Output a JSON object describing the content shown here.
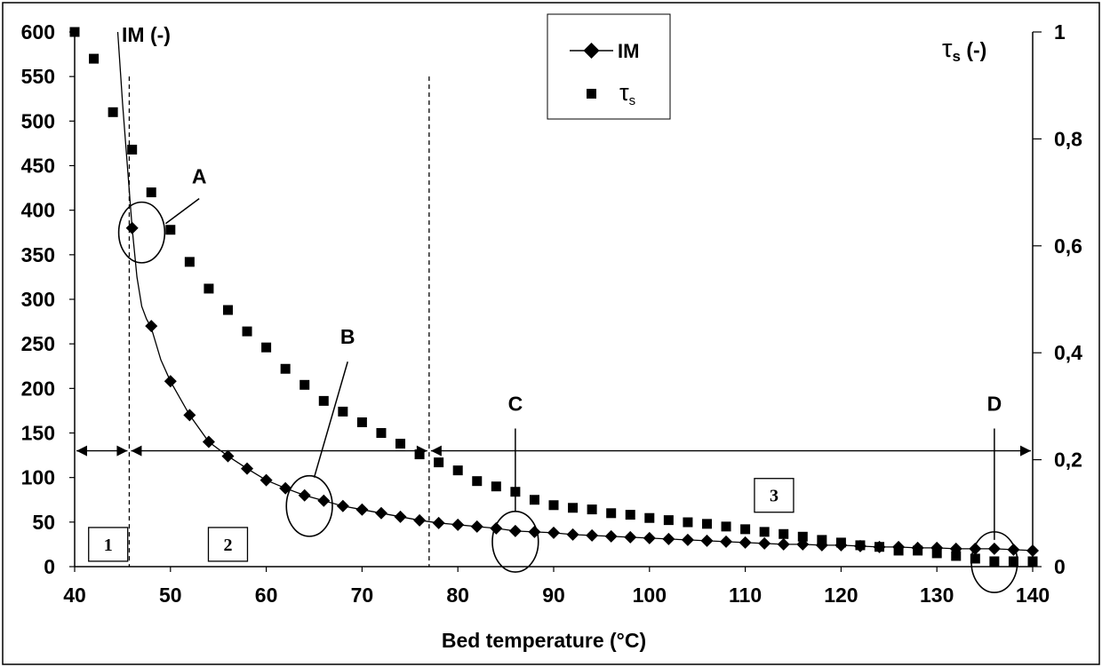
{
  "chart_data": {
    "type": "line",
    "xlabel": "Bed temperature (°C)",
    "ylabel_left": "IM (-)",
    "ylabel_right_main": "τ",
    "ylabel_right_sub": "s",
    "ylabel_right_suffix": " (-)",
    "xlim": [
      40,
      140
    ],
    "ylim_left": [
      0,
      600
    ],
    "ylim_right": [
      0,
      1
    ],
    "x_ticks": [
      "40",
      "50",
      "60",
      "70",
      "80",
      "90",
      "100",
      "110",
      "120",
      "130",
      "140"
    ],
    "y_left_ticks": [
      "0",
      "50",
      "100",
      "150",
      "200",
      "250",
      "300",
      "350",
      "400",
      "450",
      "500",
      "550",
      "600"
    ],
    "y_right_ticks": [
      "0",
      "0,2",
      "0,4",
      "0,6",
      "0,8",
      "1"
    ],
    "grid": false,
    "legend_position": "top-right",
    "series": [
      {
        "name": "IM",
        "axis": "left",
        "marker": "diamond",
        "x": [
          46,
          48,
          50,
          52,
          54,
          56,
          58,
          60,
          62,
          64,
          66,
          68,
          70,
          72,
          74,
          76,
          78,
          80,
          82,
          84,
          86,
          88,
          90,
          92,
          94,
          96,
          98,
          100,
          102,
          104,
          106,
          108,
          110,
          112,
          114,
          116,
          118,
          120,
          122,
          124,
          126,
          128,
          130,
          132,
          134,
          136,
          138,
          140
        ],
        "values": [
          380,
          270,
          208,
          170,
          140,
          124,
          110,
          97,
          88,
          80,
          74,
          68,
          64,
          60,
          56,
          52,
          49,
          47,
          45,
          43,
          40,
          39,
          38,
          36,
          35,
          34,
          33,
          32,
          31,
          30,
          29,
          28,
          27,
          26,
          25,
          25,
          24,
          24,
          23,
          22,
          22,
          21,
          21,
          20,
          20,
          20,
          19,
          18
        ]
      },
      {
        "name": "τs",
        "axis": "right",
        "marker": "square",
        "x": [
          40,
          42,
          44,
          46,
          48,
          50,
          52,
          54,
          56,
          58,
          60,
          62,
          64,
          66,
          68,
          70,
          72,
          74,
          76,
          78,
          80,
          82,
          84,
          86,
          88,
          90,
          92,
          94,
          96,
          98,
          100,
          102,
          104,
          106,
          108,
          110,
          112,
          114,
          116,
          118,
          120,
          122,
          124,
          126,
          128,
          130,
          132,
          134,
          136,
          138,
          140
        ],
        "values": [
          1.0,
          0.95,
          0.85,
          0.78,
          0.7,
          0.63,
          0.57,
          0.52,
          0.48,
          0.44,
          0.41,
          0.37,
          0.34,
          0.31,
          0.29,
          0.27,
          0.25,
          0.23,
          0.21,
          0.195,
          0.18,
          0.16,
          0.15,
          0.14,
          0.125,
          0.115,
          0.11,
          0.107,
          0.1,
          0.097,
          0.091,
          0.087,
          0.083,
          0.08,
          0.075,
          0.07,
          0.065,
          0.061,
          0.056,
          0.05,
          0.045,
          0.04,
          0.037,
          0.03,
          0.03,
          0.025,
          0.02,
          0.015,
          0.01,
          0.01,
          0.01
        ]
      }
    ],
    "im_curve": {
      "x": [
        44.5,
        45,
        45.5,
        46,
        46.5,
        47,
        47.5,
        48,
        49,
        50,
        52,
        54,
        56,
        58,
        60,
        62,
        64,
        66,
        68,
        70,
        72,
        74,
        76,
        78,
        80,
        82,
        84,
        86,
        88,
        90,
        92,
        94,
        96,
        98,
        100,
        102,
        104,
        106,
        108,
        110,
        112,
        114,
        116,
        118,
        120,
        122,
        124,
        126,
        128,
        130,
        132,
        134,
        136,
        138,
        140
      ],
      "values": [
        600,
        520,
        450,
        380,
        325,
        292,
        278,
        268,
        232,
        208,
        170,
        140,
        124,
        110,
        97,
        88,
        80,
        74,
        68,
        64,
        60,
        56,
        52,
        49,
        47,
        45,
        43,
        40,
        39,
        38,
        36,
        35,
        34,
        33,
        32,
        31,
        30,
        29,
        28,
        27,
        26,
        25,
        25,
        24,
        24,
        23,
        22,
        22,
        21,
        21,
        20,
        20,
        20,
        19,
        18
      ]
    },
    "dividers_x": [
      45.7,
      77
    ],
    "arrow_level": 130,
    "zones": [
      {
        "label": "1",
        "x": 43.5,
        "y": 25
      },
      {
        "label": "2",
        "x": 56,
        "y": 25
      },
      {
        "label": "3",
        "x": 113,
        "y": 80
      }
    ],
    "annotations": [
      {
        "label": "A",
        "cx": 47,
        "cy": 375,
        "rx": 2.4,
        "ry": 34,
        "lx1": 49.5,
        "ly1": 385,
        "lx2": 53,
        "ly2": 413,
        "tx": 53,
        "ty": 430
      },
      {
        "label": "B",
        "cx": 64.5,
        "cy": 68,
        "rx": 2.4,
        "ry": 34,
        "lx1": 65,
        "ly1": 100,
        "lx2": 68.5,
        "ly2": 230,
        "tx": 68.5,
        "ty": 250
      },
      {
        "label": "C",
        "cx": 86,
        "cy": 28,
        "rx": 2.4,
        "ry": 34,
        "lx1": 86,
        "ly1": 62,
        "lx2": 86,
        "ly2": 155,
        "tx": 86,
        "ty": 175
      },
      {
        "label": "D",
        "cx": 136,
        "cy": 5,
        "rx": 2.4,
        "ry": 34,
        "lx1": 136,
        "ly1": 30,
        "lx2": 136,
        "ly2": 155,
        "tx": 136,
        "ty": 175
      }
    ]
  }
}
